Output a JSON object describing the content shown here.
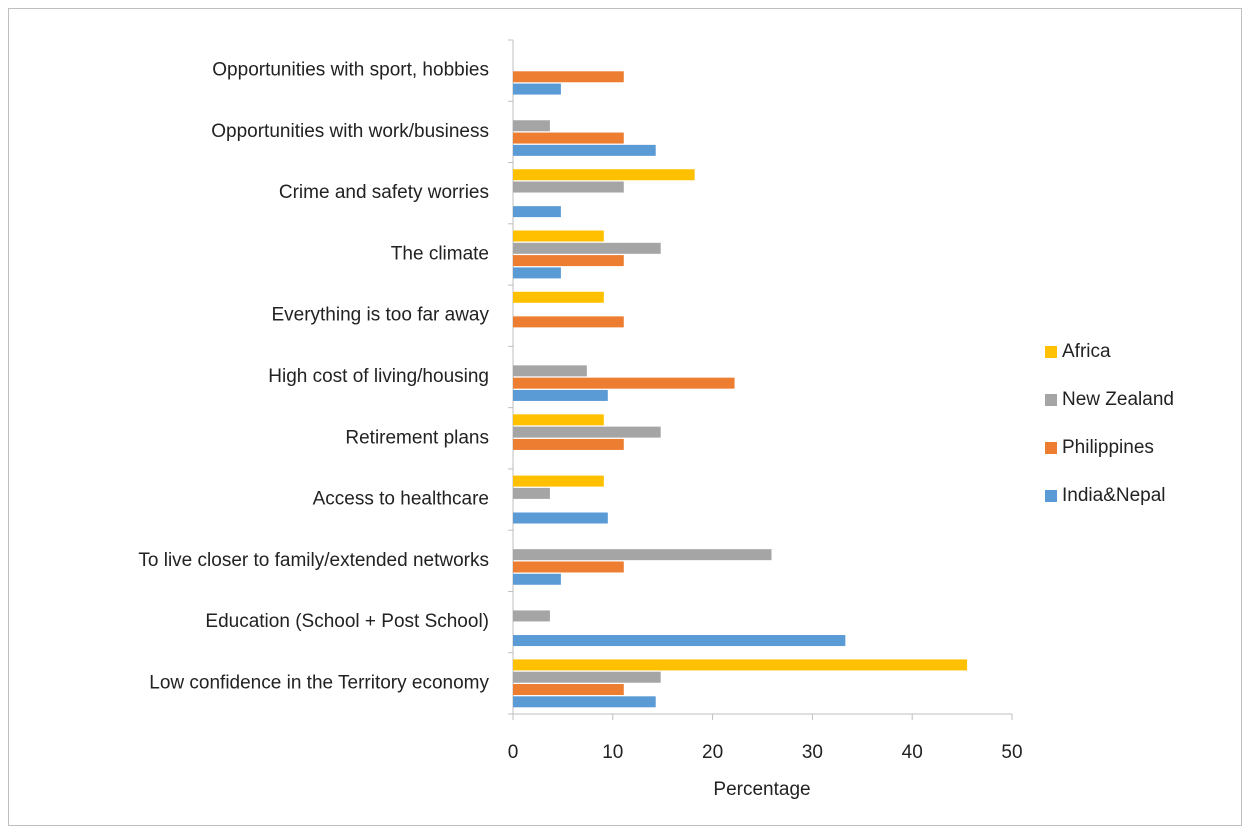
{
  "chart_data": {
    "type": "bar",
    "orientation": "horizontal",
    "xlabel": "Percentage",
    "categories": [
      "Opportunities with sport, hobbies",
      "Opportunities with work/business",
      "Crime and safety worries",
      "The climate",
      "Everything is too far away",
      "High cost of living/housing",
      "Retirement plans",
      "Access to healthcare",
      "To live closer to family/extended networks",
      "Education (School + Post School)",
      "Low confidence in the Territory economy"
    ],
    "series": [
      {
        "name": "Africa",
        "color": "#FFC000",
        "values": [
          0,
          0,
          18.2,
          9.1,
          9.1,
          0,
          9.1,
          9.1,
          0,
          0,
          45.5
        ]
      },
      {
        "name": "New Zealand",
        "color": "#A5A5A5",
        "values": [
          0,
          3.7,
          11.1,
          14.8,
          0,
          7.4,
          14.8,
          3.7,
          25.9,
          3.7,
          14.8
        ]
      },
      {
        "name": "Philippines",
        "color": "#ED7D31",
        "values": [
          11.1,
          11.1,
          0,
          11.1,
          11.1,
          22.2,
          11.1,
          0,
          11.1,
          0,
          11.1
        ]
      },
      {
        "name": "India&Nepal",
        "color": "#5B9BD5",
        "values": [
          4.8,
          14.3,
          4.8,
          4.8,
          0,
          9.5,
          0,
          9.5,
          4.8,
          33.3,
          14.3
        ]
      }
    ],
    "xlim": [
      0,
      50
    ],
    "xticks": [
      0,
      10,
      20,
      30,
      40,
      50
    ],
    "grid": false,
    "legend": "right"
  }
}
